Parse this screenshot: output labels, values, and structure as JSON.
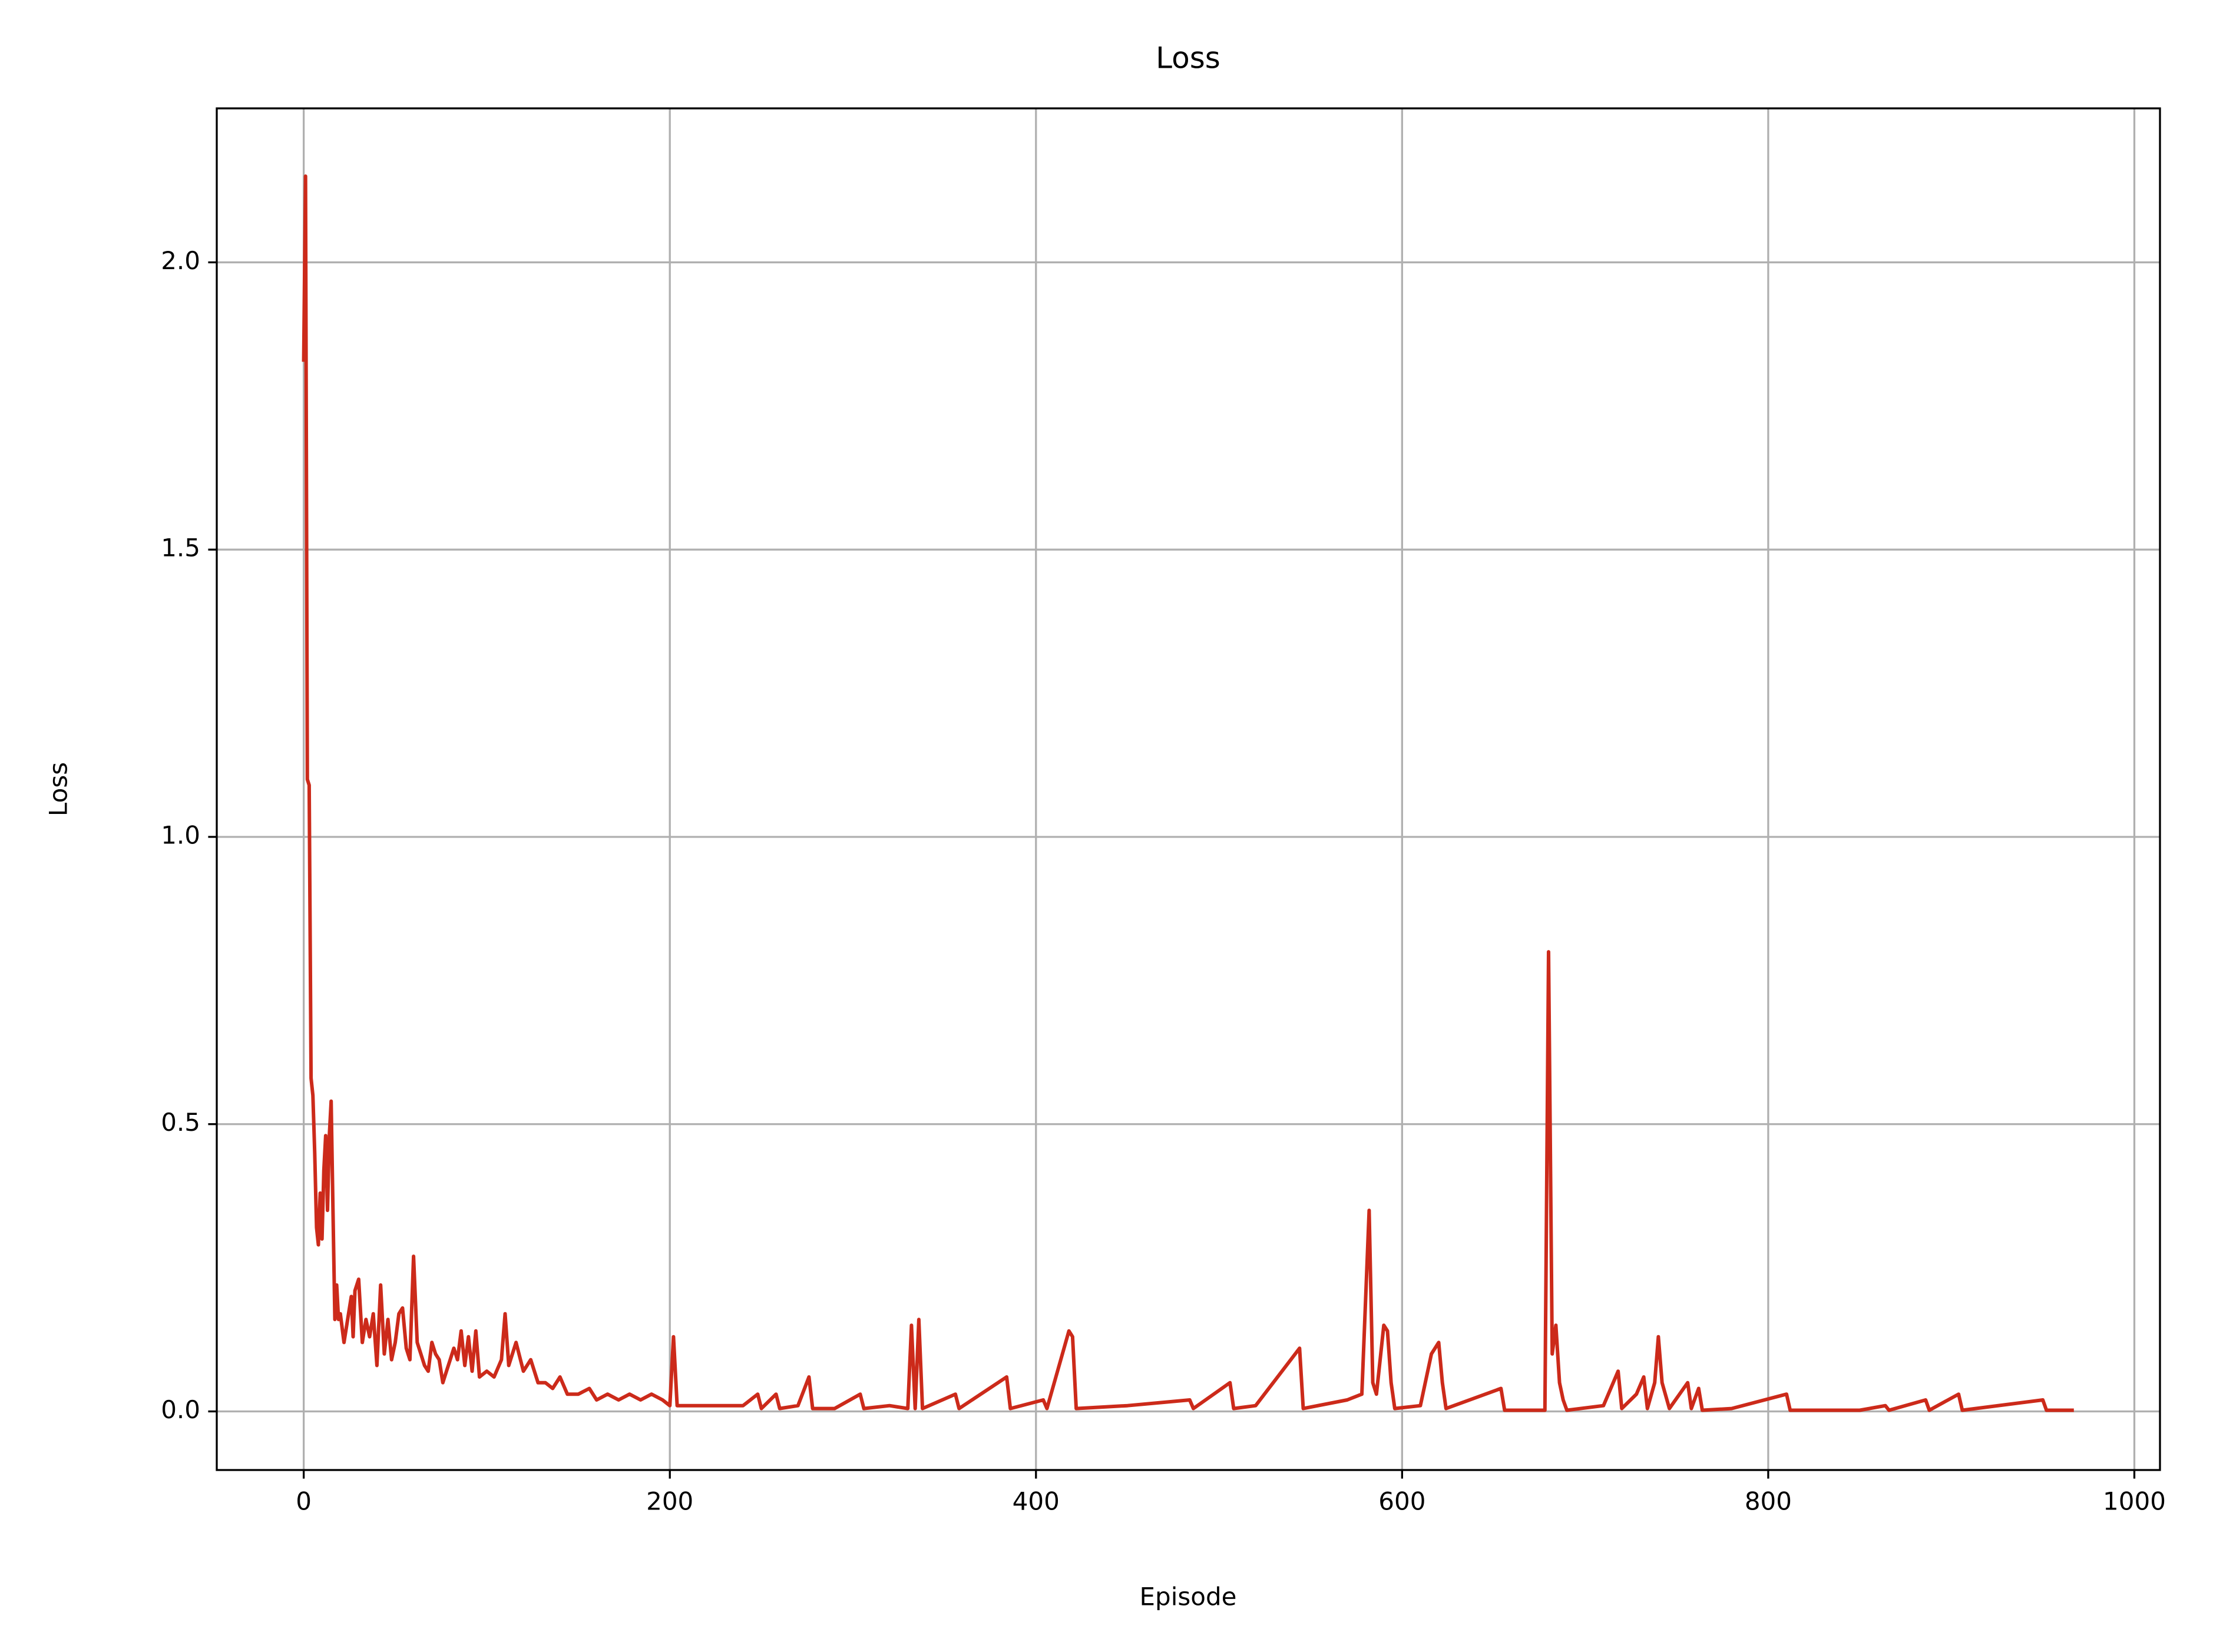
{
  "chart_data": {
    "type": "line",
    "title": "Loss",
    "xlabel": "Episode",
    "ylabel": "Loss",
    "xlim": [
      -47.5,
      1014
    ],
    "ylim": [
      -0.102,
      2.268
    ],
    "xticks": [
      0,
      200,
      400,
      600,
      800,
      1000
    ],
    "yticks": [
      {
        "value": 0,
        "label": "0.0"
      },
      0.5,
      {
        "value": 1,
        "label": "1.0"
      },
      1.5,
      {
        "value": 2,
        "label": "2.0"
      }
    ],
    "grid": true,
    "x": [
      0,
      1,
      2,
      3,
      4,
      5,
      6,
      7,
      8,
      9,
      10,
      11,
      12,
      13,
      14,
      15,
      16,
      17,
      18,
      19,
      20,
      22,
      24,
      26,
      27,
      28,
      30,
      32,
      34,
      36,
      38,
      40,
      42,
      44,
      46,
      48,
      50,
      52,
      54,
      56,
      58,
      60,
      62,
      64,
      66,
      68,
      70,
      72,
      74,
      76,
      78,
      80,
      82,
      84,
      86,
      88,
      90,
      92,
      94,
      96,
      100,
      104,
      108,
      110,
      112,
      116,
      120,
      124,
      128,
      132,
      136,
      140,
      144,
      150,
      156,
      160,
      166,
      172,
      178,
      184,
      190,
      196,
      200,
      202,
      204,
      210,
      220,
      230,
      240,
      248,
      250,
      258,
      260,
      270,
      276,
      278,
      290,
      304,
      306,
      320,
      330,
      332,
      334,
      336,
      338,
      356,
      358,
      384,
      386,
      404,
      406,
      418,
      420,
      422,
      450,
      484,
      486,
      506,
      508,
      520,
      544,
      546,
      570,
      578,
      582,
      584,
      586,
      590,
      592,
      594,
      596,
      610,
      616,
      620,
      622,
      624,
      654,
      656,
      678,
      680,
      682,
      684,
      686,
      688,
      690,
      710,
      718,
      720,
      728,
      732,
      734,
      738,
      740,
      742,
      746,
      756,
      758,
      762,
      764,
      780,
      810,
      812,
      850,
      864,
      866,
      886,
      888,
      904,
      906,
      950,
      952,
      966
    ],
    "series": [
      {
        "name": "Loss",
        "color": "#cc2a1a",
        "values": [
          1.83,
          2.15,
          1.1,
          1.09,
          0.58,
          0.55,
          0.45,
          0.32,
          0.29,
          0.38,
          0.3,
          0.42,
          0.48,
          0.35,
          0.48,
          0.54,
          0.35,
          0.16,
          0.22,
          0.16,
          0.17,
          0.12,
          0.16,
          0.2,
          0.13,
          0.21,
          0.23,
          0.12,
          0.16,
          0.13,
          0.17,
          0.08,
          0.22,
          0.1,
          0.16,
          0.09,
          0.12,
          0.17,
          0.18,
          0.11,
          0.09,
          0.27,
          0.12,
          0.1,
          0.08,
          0.07,
          0.12,
          0.1,
          0.09,
          0.05,
          0.07,
          0.09,
          0.11,
          0.09,
          0.14,
          0.08,
          0.13,
          0.07,
          0.14,
          0.06,
          0.07,
          0.06,
          0.09,
          0.17,
          0.08,
          0.12,
          0.07,
          0.09,
          0.05,
          0.05,
          0.04,
          0.06,
          0.03,
          0.03,
          0.04,
          0.02,
          0.03,
          0.02,
          0.03,
          0.02,
          0.03,
          0.02,
          0.01,
          0.13,
          0.01,
          0.01,
          0.01,
          0.01,
          0.01,
          0.03,
          0.005,
          0.03,
          0.005,
          0.01,
          0.06,
          0.005,
          0.005,
          0.03,
          0.005,
          0.01,
          0.005,
          0.15,
          0.005,
          0.16,
          0.005,
          0.03,
          0.005,
          0.06,
          0.005,
          0.02,
          0.005,
          0.14,
          0.13,
          0.005,
          0.01,
          0.02,
          0.005,
          0.05,
          0.005,
          0.01,
          0.11,
          0.005,
          0.02,
          0.03,
          0.35,
          0.05,
          0.03,
          0.15,
          0.14,
          0.05,
          0.005,
          0.01,
          0.1,
          0.12,
          0.05,
          0.005,
          0.04,
          0.002,
          0.002,
          0.8,
          0.1,
          0.15,
          0.05,
          0.02,
          0.002,
          0.01,
          0.07,
          0.005,
          0.03,
          0.06,
          0.005,
          0.05,
          0.13,
          0.05,
          0.005,
          0.05,
          0.005,
          0.04,
          0.002,
          0.005,
          0.03,
          0.002,
          0.002,
          0.01,
          0.002,
          0.02,
          0.002,
          0.03,
          0.002,
          0.02,
          0.002,
          0.002
        ]
      }
    ]
  }
}
